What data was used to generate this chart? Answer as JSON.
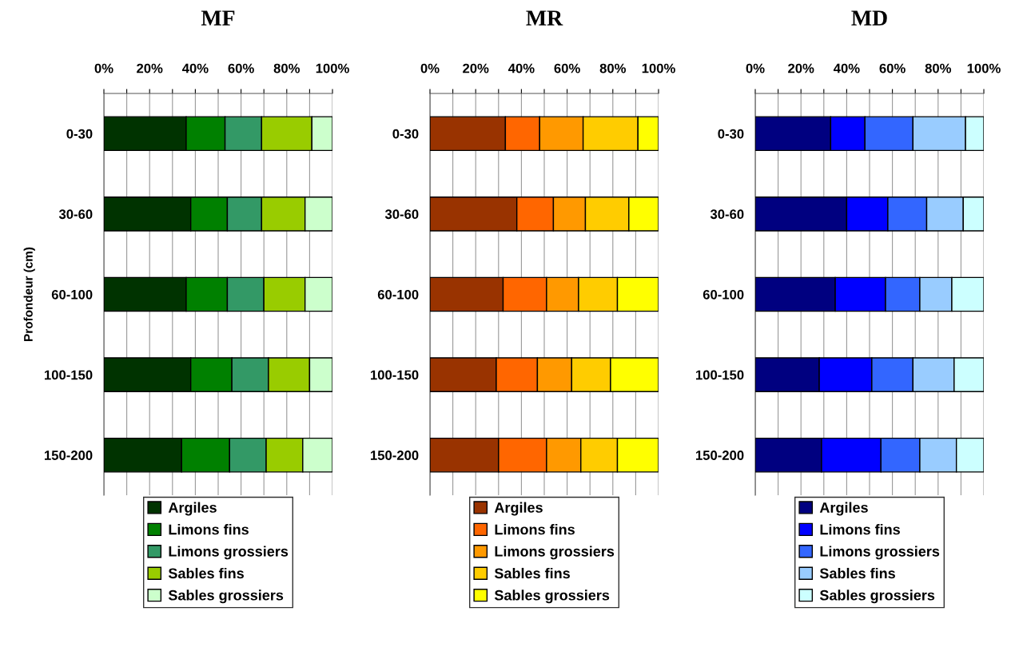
{
  "chart_data": [
    {
      "type": "bar",
      "orientation": "horizontal",
      "stacked": true,
      "title": "MF",
      "ylabel": "Profondeur (cm)",
      "categories": [
        "0-30",
        "30-60",
        "60-100",
        "100-150",
        "150-200"
      ],
      "series": [
        {
          "name": "Argiles",
          "color": "#003300",
          "values": [
            36,
            38,
            36,
            38,
            34
          ]
        },
        {
          "name": "Limons fins",
          "color": "#008000",
          "values": [
            17,
            16,
            18,
            18,
            21
          ]
        },
        {
          "name": "Limons grossiers",
          "color": "#339966",
          "values": [
            16,
            15,
            16,
            16,
            16
          ]
        },
        {
          "name": "Sables fins",
          "color": "#99cc00",
          "values": [
            22,
            19,
            18,
            18,
            16
          ]
        },
        {
          "name": "Sables grossiers",
          "color": "#ccffcc",
          "values": [
            9,
            12,
            12,
            10,
            13
          ]
        }
      ],
      "xlim": [
        0,
        100
      ],
      "xticks": [
        {
          "value": 0,
          "label": "0%"
        },
        {
          "value": 10,
          "label": null
        },
        {
          "value": 20,
          "label": "20%"
        },
        {
          "value": 30,
          "label": null
        },
        {
          "value": 40,
          "label": "40%"
        },
        {
          "value": 50,
          "label": null
        },
        {
          "value": 60,
          "label": "60%"
        },
        {
          "value": 70,
          "label": null
        },
        {
          "value": 80,
          "label": "80%"
        },
        {
          "value": 90,
          "label": null
        },
        {
          "value": 100,
          "label": "100%"
        }
      ],
      "grid": "x",
      "legend": "bottom"
    },
    {
      "type": "bar",
      "orientation": "horizontal",
      "stacked": true,
      "title": "MR",
      "categories": [
        "0-30",
        "30-60",
        "60-100",
        "100-150",
        "150-200"
      ],
      "series": [
        {
          "name": "Argiles",
          "color": "#993300",
          "values": [
            33,
            38,
            32,
            29,
            30
          ]
        },
        {
          "name": "Limons fins",
          "color": "#ff6600",
          "values": [
            15,
            16,
            19,
            18,
            21
          ]
        },
        {
          "name": "Limons grossiers",
          "color": "#ff9900",
          "values": [
            19,
            14,
            14,
            15,
            15
          ]
        },
        {
          "name": "Sables fins",
          "color": "#ffcc00",
          "values": [
            24,
            19,
            17,
            17,
            16
          ]
        },
        {
          "name": "Sables grossiers",
          "color": "#ffff00",
          "values": [
            9,
            13,
            18,
            21,
            18
          ]
        }
      ],
      "xlim": [
        0,
        100
      ],
      "xticks": [
        {
          "value": 0,
          "label": "0%"
        },
        {
          "value": 10,
          "label": null
        },
        {
          "value": 20,
          "label": "20%"
        },
        {
          "value": 30,
          "label": null
        },
        {
          "value": 40,
          "label": "40%"
        },
        {
          "value": 50,
          "label": null
        },
        {
          "value": 60,
          "label": "60%"
        },
        {
          "value": 70,
          "label": null
        },
        {
          "value": 80,
          "label": "80%"
        },
        {
          "value": 90,
          "label": null
        },
        {
          "value": 100,
          "label": "100%"
        }
      ],
      "grid": "x",
      "legend": "bottom"
    },
    {
      "type": "bar",
      "orientation": "horizontal",
      "stacked": true,
      "title": "MD",
      "categories": [
        "0-30",
        "30-60",
        "60-100",
        "100-150",
        "150-200"
      ],
      "series": [
        {
          "name": "Argiles",
          "color": "#000080",
          "values": [
            33,
            40,
            35,
            28,
            29
          ]
        },
        {
          "name": "Limons fins",
          "color": "#0000ff",
          "values": [
            15,
            18,
            22,
            23,
            26
          ]
        },
        {
          "name": "Limons grossiers",
          "color": "#3366ff",
          "values": [
            21,
            17,
            15,
            18,
            17
          ]
        },
        {
          "name": "Sables fins",
          "color": "#99ccff",
          "values": [
            23,
            16,
            14,
            18,
            16
          ]
        },
        {
          "name": "Sables grossiers",
          "color": "#ccffff",
          "values": [
            8,
            9,
            14,
            13,
            12
          ]
        }
      ],
      "xlim": [
        0,
        100
      ],
      "xticks": [
        {
          "value": 0,
          "label": "0%"
        },
        {
          "value": 10,
          "label": null
        },
        {
          "value": 20,
          "label": "20%"
        },
        {
          "value": 30,
          "label": null
        },
        {
          "value": 40,
          "label": "40%"
        },
        {
          "value": 50,
          "label": null
        },
        {
          "value": 60,
          "label": "60%"
        },
        {
          "value": 70,
          "label": null
        },
        {
          "value": 80,
          "label": "80%"
        },
        {
          "value": 90,
          "label": null
        },
        {
          "value": 100,
          "label": "100%"
        }
      ],
      "grid": "x",
      "legend": "bottom"
    }
  ]
}
